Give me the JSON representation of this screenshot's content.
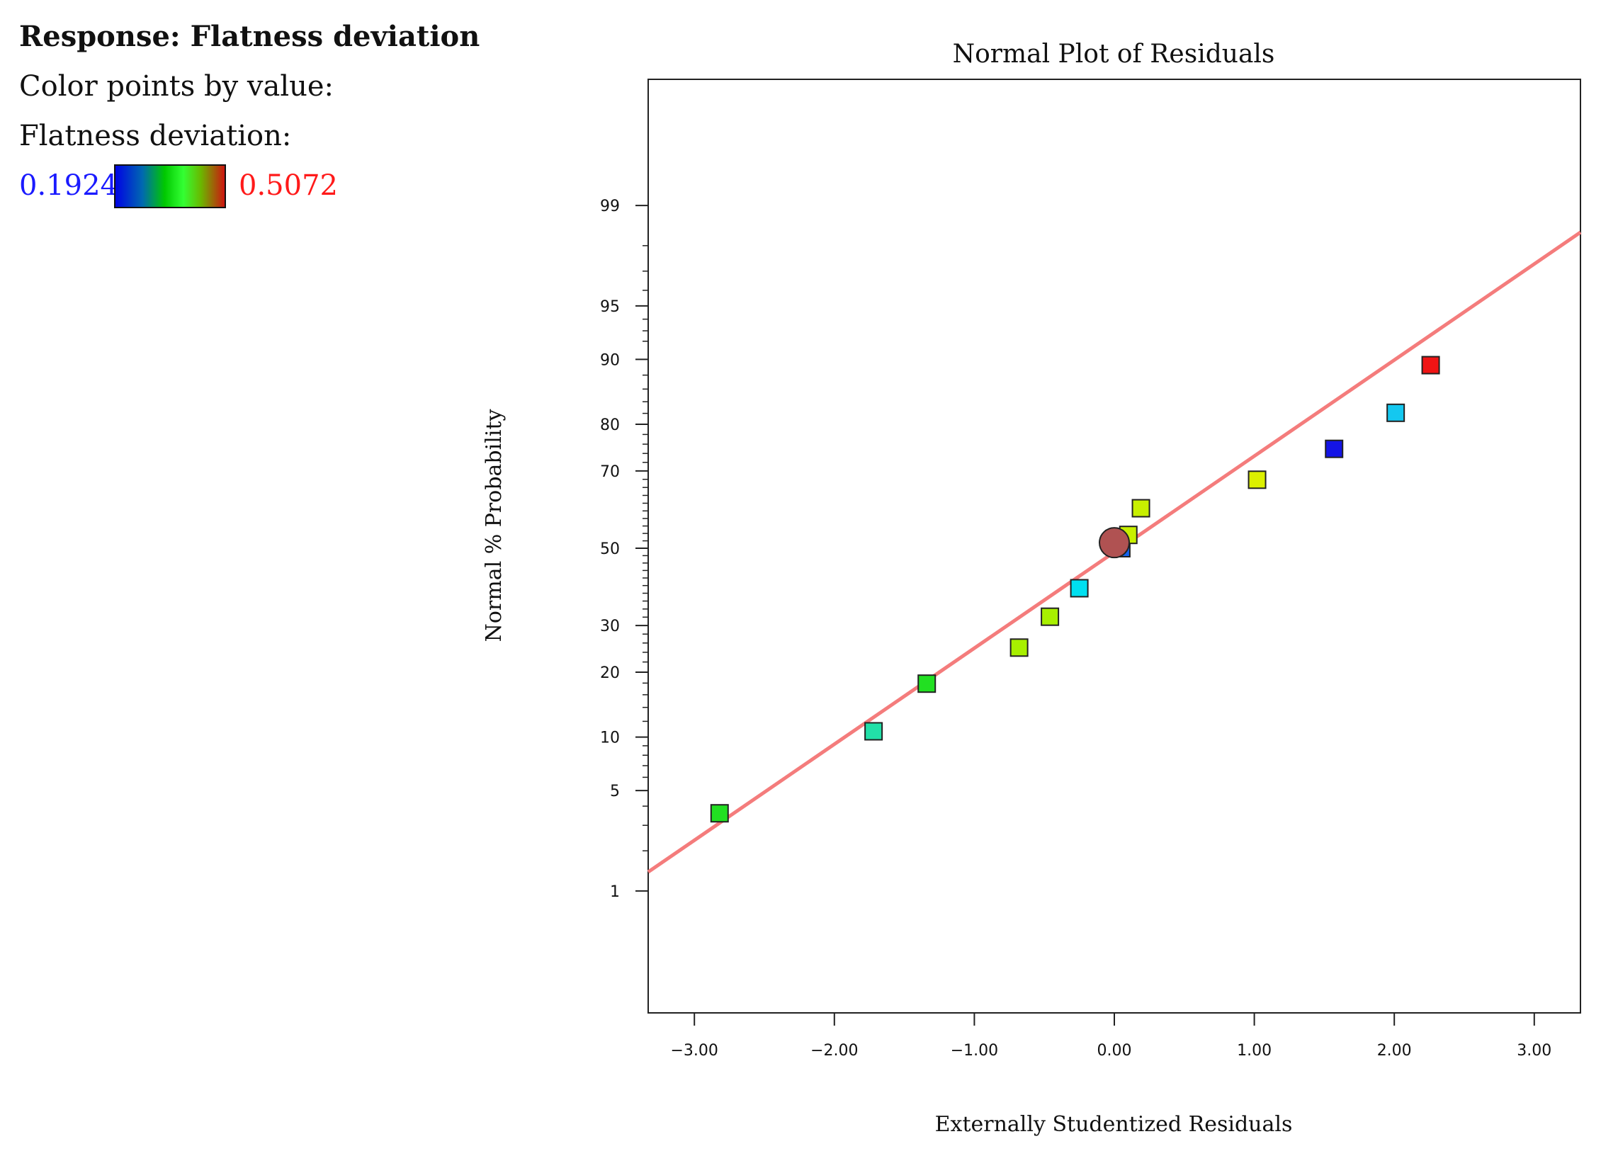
{
  "legend_panel": {
    "response_label": "Response: Flatness deviation",
    "color_by_label": "Color points by value:",
    "variable_label": "Flatness deviation:",
    "min_value": "0.1924",
    "max_value": "0.5072",
    "min_color": "#1a1aff",
    "max_color": "#ff1a1a"
  },
  "chart_data": {
    "type": "scatter",
    "title": "Normal Plot of Residuals",
    "xlabel": "Externally Studentized Residuals",
    "ylabel": "Normal % Probability",
    "xlim": [
      -3.33,
      3.33
    ],
    "x_ticks": [
      -3,
      -2,
      -1,
      0,
      1,
      2,
      3
    ],
    "x_tick_labels": [
      "−3.00",
      "−2.00",
      "−1.00",
      "0.00",
      "1.00",
      "2.00",
      "3.00"
    ],
    "y_scale": "normal-probability",
    "y_ticks": [
      1,
      5,
      10,
      20,
      30,
      50,
      70,
      80,
      90,
      95,
      99
    ],
    "y_tick_labels": [
      "1",
      "5",
      "10",
      "20",
      "30",
      "50",
      "70",
      "80",
      "90",
      "95",
      "99"
    ],
    "grid": false,
    "reference_line": {
      "color": "#f47c7c",
      "points": [
        [
          -3.33,
          1.4
        ],
        [
          3.33,
          98.4
        ]
      ]
    },
    "points": [
      {
        "x": -2.82,
        "y": 3.6,
        "color": "#22e022",
        "marker": "square"
      },
      {
        "x": -1.72,
        "y": 10.7,
        "color": "#22e0a8",
        "marker": "square"
      },
      {
        "x": -1.34,
        "y": 17.9,
        "color": "#22e022",
        "marker": "square"
      },
      {
        "x": -0.68,
        "y": 25.0,
        "color": "#a8f000",
        "marker": "square"
      },
      {
        "x": -0.46,
        "y": 32.1,
        "color": "#a8f000",
        "marker": "square"
      },
      {
        "x": -0.25,
        "y": 39.3,
        "color": "#00e0f0",
        "marker": "square"
      },
      {
        "x": 0.05,
        "y": 50.0,
        "color": "#1464f0",
        "marker": "square"
      },
      {
        "x": 0.1,
        "y": 53.6,
        "color": "#c8f000",
        "marker": "square"
      },
      {
        "x": 0.19,
        "y": 60.7,
        "color": "#c8f000",
        "marker": "square"
      },
      {
        "x": 1.02,
        "y": 67.9,
        "color": "#dcf000",
        "marker": "square"
      },
      {
        "x": 1.57,
        "y": 75.0,
        "color": "#1414e6",
        "marker": "square"
      },
      {
        "x": 2.01,
        "y": 82.1,
        "color": "#14c8f0",
        "marker": "square"
      },
      {
        "x": 2.26,
        "y": 89.3,
        "color": "#f01414",
        "marker": "square"
      },
      {
        "x": 0.0,
        "y": 51.5,
        "color": "#b05252",
        "marker": "circle"
      }
    ]
  }
}
